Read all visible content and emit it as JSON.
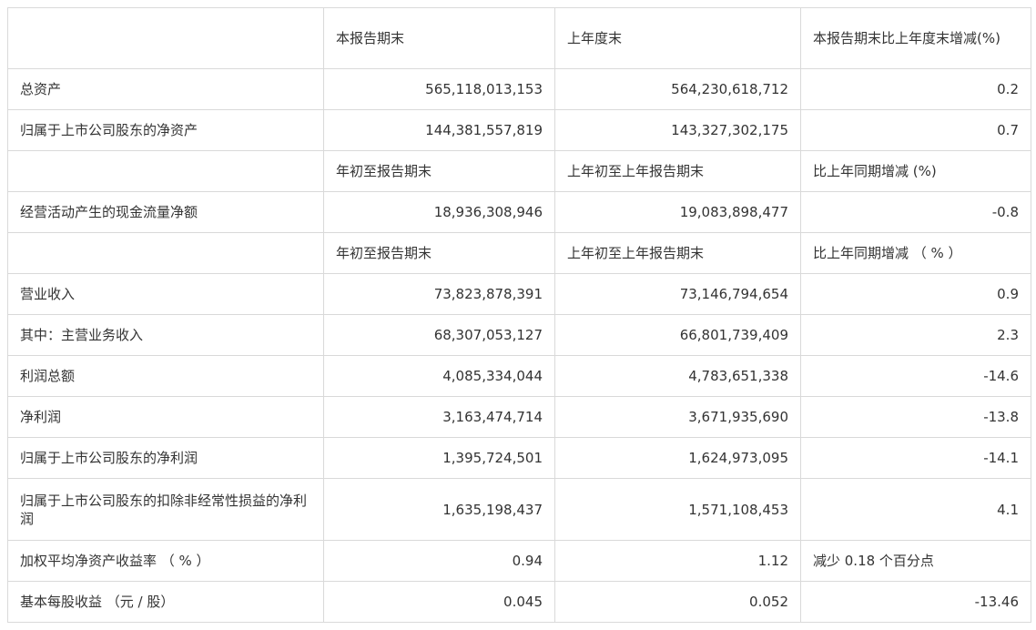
{
  "header_top": {
    "c0": "",
    "c1": "本报告期末",
    "c2": "上年度末",
    "c3": "本报告期末比上年度末增减(%)"
  },
  "section_balance": [
    {
      "label": "总资产",
      "current": "565,118,013,153",
      "prior": "564,230,618,712",
      "change": "0.2"
    },
    {
      "label": "归属于上市公司股东的净资产",
      "current": "144,381,557,819",
      "prior": "143,327,302,175",
      "change": "0.7"
    }
  ],
  "header_mid1": {
    "c0": "",
    "c1": "年初至报告期末",
    "c2": "上年初至上年报告期末",
    "c3": "比上年同期增减 (%)"
  },
  "section_cashflow": [
    {
      "label": "经营活动产生的现金流量净额",
      "current": "18,936,308,946",
      "prior": "19,083,898,477",
      "change": "-0.8"
    }
  ],
  "header_mid2": {
    "c0": "",
    "c1": "年初至报告期末",
    "c2": "上年初至上年报告期末",
    "c3": "比上年同期增减 （ % ）"
  },
  "section_income": [
    {
      "label": "营业收入",
      "current": "73,823,878,391",
      "prior": "73,146,794,654",
      "change": "0.9"
    },
    {
      "label": "其中：主营业务收入",
      "current": "68,307,053,127",
      "prior": "66,801,739,409",
      "change": "2.3"
    },
    {
      "label": "利润总额",
      "current": "4,085,334,044",
      "prior": "4,783,651,338",
      "change": "-14.6"
    },
    {
      "label": "净利润",
      "current": "3,163,474,714",
      "prior": "3,671,935,690",
      "change": "-13.8"
    },
    {
      "label": "归属于上市公司股东的净利润",
      "current": "1,395,724,501",
      "prior": "1,624,973,095",
      "change": "-14.1"
    },
    {
      "label": "归属于上市公司股东的扣除非经常性损益的净利润",
      "current": "1,635,198,437",
      "prior": "1,571,108,453",
      "change": "4.1"
    },
    {
      "label": "加权平均净资产收益率 （ % ）",
      "current": "0.94",
      "prior": "1.12",
      "change": "减少 0.18 个百分点"
    },
    {
      "label": "基本每股收益 （元 / 股）",
      "current": "0.045",
      "prior": "0.052",
      "change": "-13.46"
    }
  ]
}
